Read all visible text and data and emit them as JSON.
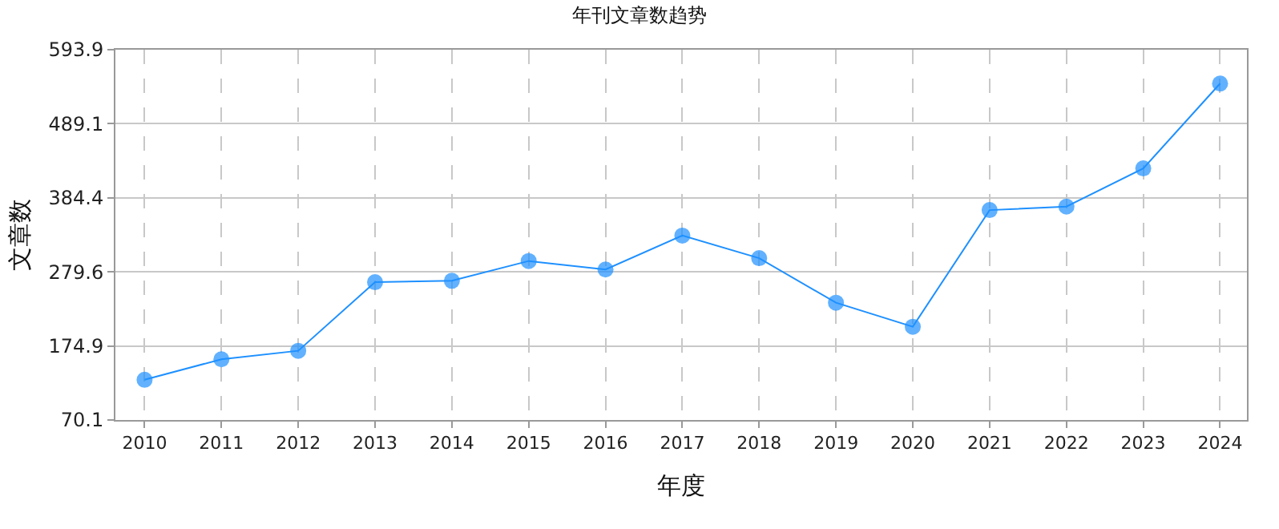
{
  "chart_data": {
    "type": "line",
    "title": "年刊文章数趋势",
    "xlabel": "年度",
    "ylabel": "文章数",
    "x": [
      2010,
      2011,
      2012,
      2013,
      2014,
      2015,
      2016,
      2017,
      2018,
      2019,
      2020,
      2021,
      2022,
      2023,
      2024
    ],
    "series": [
      {
        "color": "#1e90ff",
        "values": [
          127,
          156,
          168,
          265,
          267,
          295,
          283,
          331,
          299,
          236,
          202,
          367,
          372,
          426,
          546
        ]
      }
    ],
    "xlim": [
      2009.62,
      2024.35
    ],
    "xticks": [
      2010,
      2011,
      2012,
      2013,
      2014,
      2015,
      2016,
      2017,
      2018,
      2019,
      2020,
      2021,
      2022,
      2023,
      2024
    ],
    "ylim": [
      70.1,
      593.9
    ],
    "yticks": [
      70.1,
      174.9,
      279.6,
      384.4,
      489.1,
      593.9
    ],
    "grid": true,
    "marker": "circle",
    "line_style": "solid",
    "legend": false
  }
}
